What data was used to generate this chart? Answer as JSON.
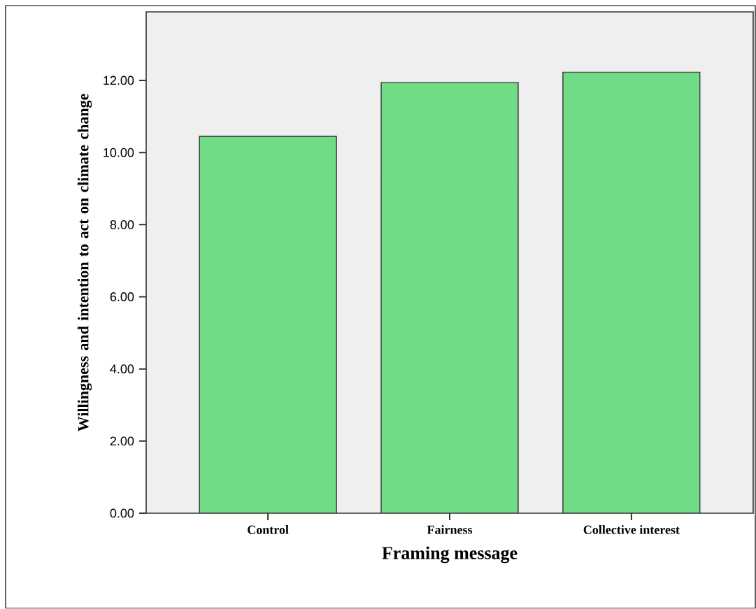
{
  "chart_data": {
    "type": "bar",
    "xlabel": "Framing message",
    "ylabel": "Willingness and intention to act on climate change",
    "categories": [
      "Control",
      "Fairness",
      "Collective interest"
    ],
    "values": [
      10.45,
      11.94,
      12.23
    ],
    "color": "#70dc85",
    "ylim": [
      0,
      13.9
    ],
    "yticks": [
      {
        "value": 0,
        "label": "0.00"
      },
      {
        "value": 2,
        "label": "2.00"
      },
      {
        "value": 4,
        "label": "4.00"
      },
      {
        "value": 6,
        "label": "6.00"
      },
      {
        "value": 8,
        "label": "8.00"
      },
      {
        "value": 10,
        "label": "10.00"
      },
      {
        "value": 12,
        "label": "12.00"
      }
    ]
  }
}
